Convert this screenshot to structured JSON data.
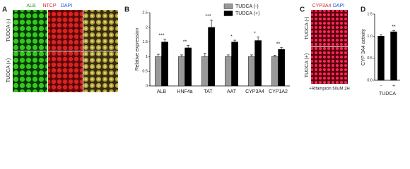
{
  "panels": {
    "A": {
      "label": "A",
      "channels": [
        "ALB",
        "NTCP",
        "DAPI"
      ],
      "rows": [
        "TUDCA (-)",
        "TUDCA (+)"
      ]
    },
    "C": {
      "label": "C",
      "channels": [
        "CYP3A4",
        "DAPI"
      ],
      "rows": [
        "TUDCA (-)",
        "TUDCA (+)"
      ],
      "note": "+Rifampicin 50uM 2H"
    }
  },
  "chart_data": [
    {
      "type": "bar",
      "panel_label": "B",
      "y_label": "Relative expression",
      "categories": [
        "ALB",
        "HNF4a",
        "TAT",
        "AAT",
        "CYP3A4",
        "CYP1A2"
      ],
      "series": [
        {
          "name": "TUDCA (-)",
          "color": "#999999",
          "values": [
            1,
            1,
            1,
            1,
            1,
            1
          ],
          "errors": [
            0.08,
            0.06,
            0.12,
            0.06,
            0.06,
            0.05
          ]
        },
        {
          "name": "TUDCA (+)",
          "color": "#000000",
          "values": [
            1.5,
            1.3,
            2.0,
            1.5,
            1.55,
            1.25
          ],
          "errors": [
            0.1,
            0.08,
            0.25,
            0.06,
            0.12,
            0.06
          ]
        }
      ],
      "annotations": [
        "***",
        "**",
        "***",
        "*",
        "*",
        "**"
      ],
      "ylim": [
        0,
        2.5
      ],
      "yticks": [
        0,
        0.5,
        1,
        1.5,
        2,
        2.5
      ],
      "legend": "top"
    },
    {
      "type": "bar",
      "panel_label": "D",
      "y_label": "CYP 3A4 activity",
      "x_label": "TUDCA",
      "categories": [
        "-",
        "+"
      ],
      "series": [
        {
          "color": "#000000",
          "values": [
            1.0,
            1.1
          ],
          "errors": [
            0.03,
            0.03
          ]
        }
      ],
      "annotations": [
        null,
        "**"
      ],
      "ylim": [
        0,
        1.5
      ],
      "yticks": [
        {
          "value": 0,
          "label": "0.0"
        },
        {
          "value": 0.5,
          "label": "0.5"
        },
        {
          "value": 1,
          "label": "1.0"
        },
        {
          "value": 1.5,
          "label": "1.5"
        }
      ]
    }
  ]
}
